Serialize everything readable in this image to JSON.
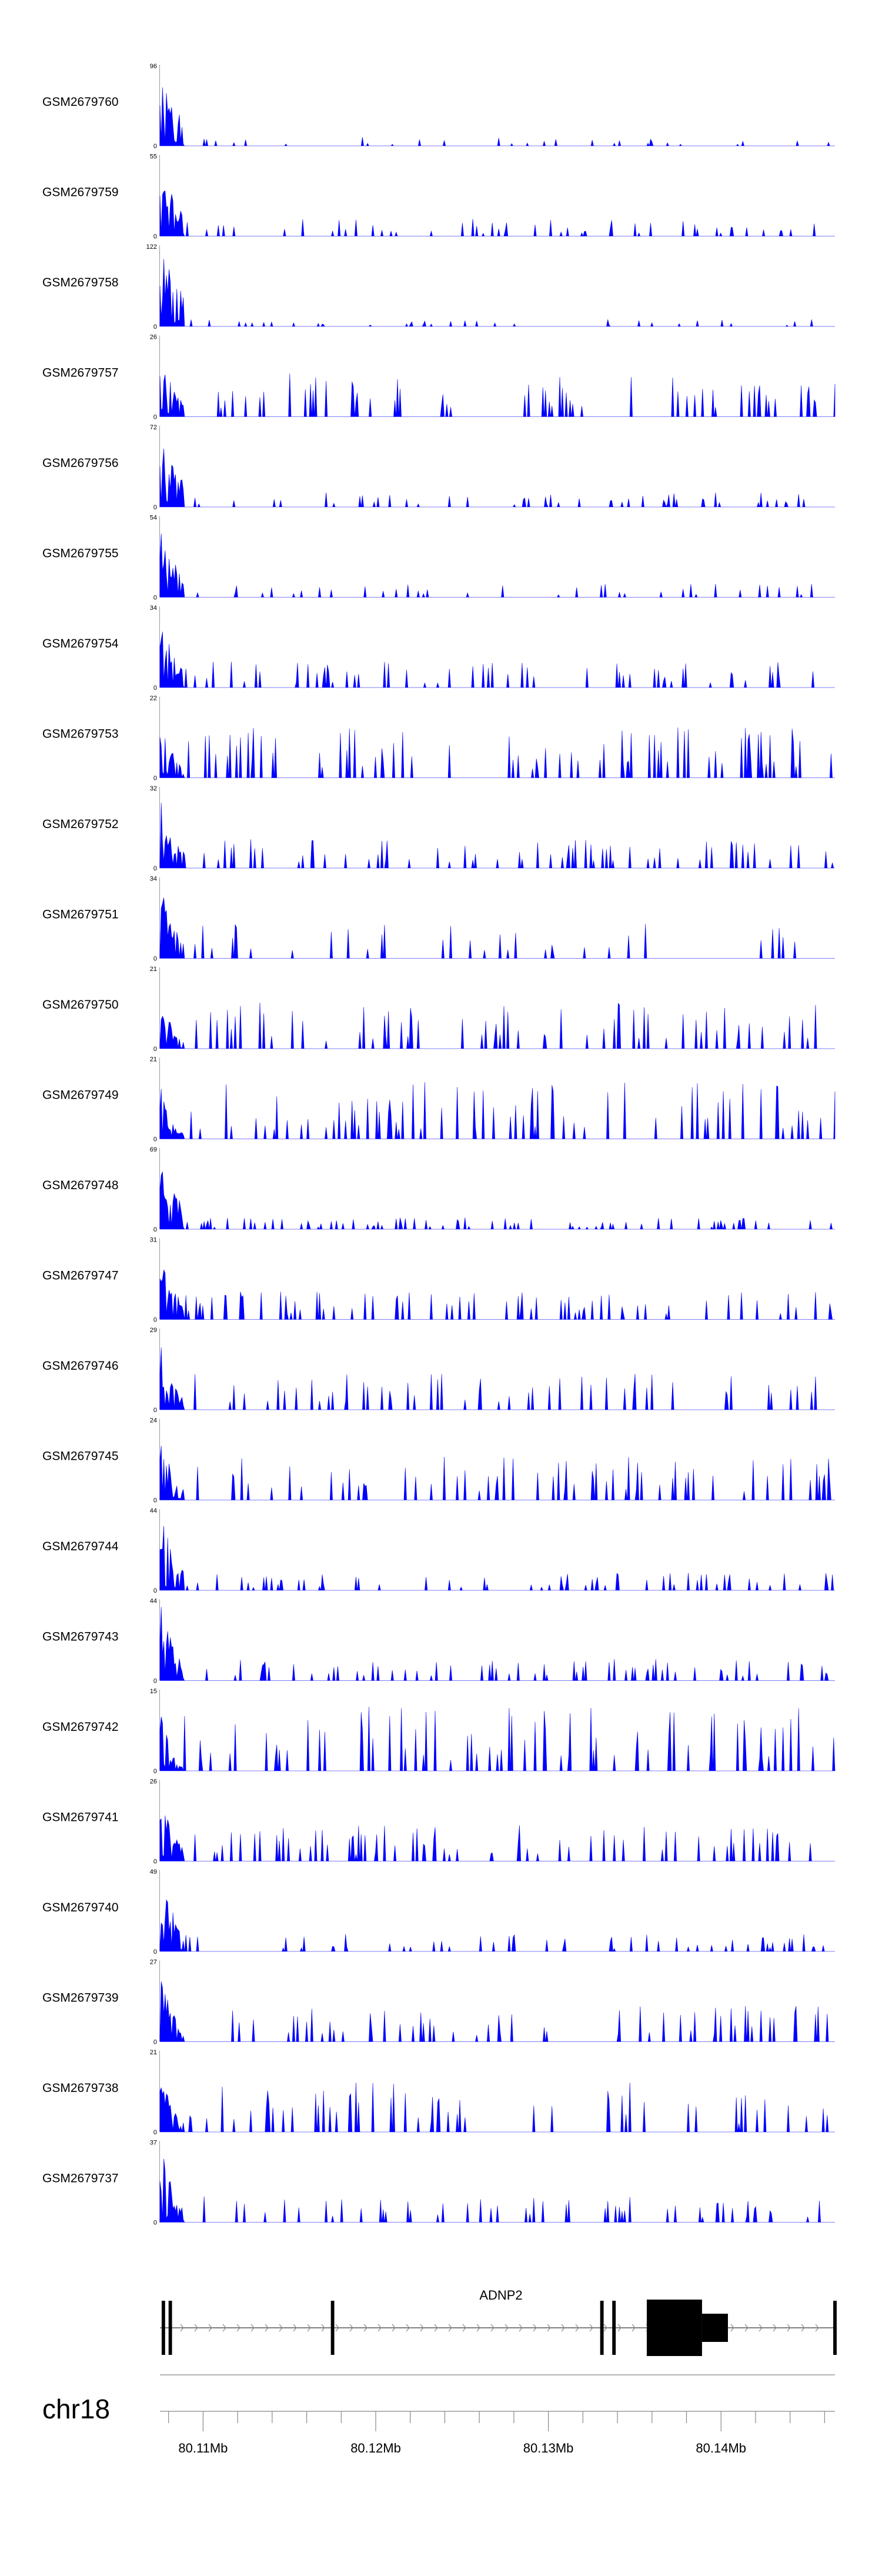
{
  "chart_data": {
    "type": "area",
    "genome": "chr18",
    "xlabel": "",
    "xlim": [
      80.1075,
      80.1466
    ],
    "series": [
      {
        "name": "GSM2679760",
        "ymax": 96,
        "peak": 96,
        "decay": 0.7,
        "density": 0.35,
        "level": 0.06,
        "seed": 11
      },
      {
        "name": "GSM2679759",
        "ymax": 55,
        "peak": 55,
        "decay": 0.9,
        "density": 0.55,
        "level": 0.12,
        "seed": 12
      },
      {
        "name": "GSM2679758",
        "ymax": 122,
        "peak": 122,
        "decay": 0.6,
        "density": 0.4,
        "level": 0.05,
        "seed": 13
      },
      {
        "name": "GSM2679757",
        "ymax": 26,
        "peak": 26,
        "decay": 1.2,
        "density": 0.65,
        "level": 0.3,
        "seed": 14
      },
      {
        "name": "GSM2679756",
        "ymax": 72,
        "peak": 72,
        "decay": 0.8,
        "density": 0.55,
        "level": 0.1,
        "seed": 15
      },
      {
        "name": "GSM2679755",
        "ymax": 54,
        "peak": 54,
        "decay": 0.9,
        "density": 0.45,
        "level": 0.1,
        "seed": 16
      },
      {
        "name": "GSM2679754",
        "ymax": 34,
        "peak": 34,
        "decay": 1.0,
        "density": 0.65,
        "level": 0.18,
        "seed": 17
      },
      {
        "name": "GSM2679753",
        "ymax": 22,
        "peak": 22,
        "decay": 1.5,
        "density": 0.8,
        "level": 0.35,
        "seed": 18
      },
      {
        "name": "GSM2679752",
        "ymax": 32,
        "peak": 32,
        "decay": 1.1,
        "density": 0.7,
        "level": 0.2,
        "seed": 19
      },
      {
        "name": "GSM2679751",
        "ymax": 34,
        "peak": 34,
        "decay": 1.1,
        "density": 0.55,
        "level": 0.25,
        "seed": 20
      },
      {
        "name": "GSM2679750",
        "ymax": 21,
        "peak": 18,
        "decay": 1.5,
        "density": 0.75,
        "level": 0.32,
        "seed": 21
      },
      {
        "name": "GSM2679749",
        "ymax": 21,
        "peak": 16,
        "decay": 1.6,
        "density": 0.8,
        "level": 0.4,
        "seed": 22
      },
      {
        "name": "GSM2679748",
        "ymax": 69,
        "peak": 69,
        "decay": 0.8,
        "density": 0.7,
        "level": 0.08,
        "seed": 23
      },
      {
        "name": "GSM2679747",
        "ymax": 31,
        "peak": 31,
        "decay": 1.1,
        "density": 0.75,
        "level": 0.2,
        "seed": 24
      },
      {
        "name": "GSM2679746",
        "ymax": 29,
        "peak": 26,
        "decay": 1.3,
        "density": 0.65,
        "level": 0.25,
        "seed": 25
      },
      {
        "name": "GSM2679745",
        "ymax": 24,
        "peak": 24,
        "decay": 1.4,
        "density": 0.75,
        "level": 0.3,
        "seed": 26
      },
      {
        "name": "GSM2679744",
        "ymax": 44,
        "peak": 44,
        "decay": 0.9,
        "density": 0.65,
        "level": 0.12,
        "seed": 27
      },
      {
        "name": "GSM2679743",
        "ymax": 44,
        "peak": 44,
        "decay": 1.0,
        "density": 0.8,
        "level": 0.15,
        "seed": 28
      },
      {
        "name": "GSM2679742",
        "ymax": 15,
        "peak": 15,
        "decay": 2.0,
        "density": 0.75,
        "level": 0.45,
        "seed": 29
      },
      {
        "name": "GSM2679741",
        "ymax": 26,
        "peak": 26,
        "decay": 1.3,
        "density": 0.85,
        "level": 0.25,
        "seed": 30
      },
      {
        "name": "GSM2679740",
        "ymax": 49,
        "peak": 49,
        "decay": 0.9,
        "density": 0.7,
        "level": 0.12,
        "seed": 31
      },
      {
        "name": "GSM2679739",
        "ymax": 27,
        "peak": 27,
        "decay": 1.2,
        "density": 0.7,
        "level": 0.25,
        "seed": 32
      },
      {
        "name": "GSM2679738",
        "ymax": 21,
        "peak": 21,
        "decay": 1.5,
        "density": 0.75,
        "level": 0.35,
        "seed": 33
      },
      {
        "name": "GSM2679737",
        "ymax": 37,
        "peak": 37,
        "decay": 1.0,
        "density": 0.65,
        "level": 0.18,
        "seed": 34
      }
    ],
    "gene": {
      "name": "ADNP2",
      "strand": "+",
      "start": 80.1075,
      "end": 80.1466,
      "exons": [
        {
          "start": 80.1076,
          "end": 80.1078,
          "height": "small"
        },
        {
          "start": 80.108,
          "end": 80.1082,
          "height": "small"
        },
        {
          "start": 80.1174,
          "end": 80.1176,
          "height": "small"
        },
        {
          "start": 80.133,
          "end": 80.1332,
          "height": "small"
        },
        {
          "start": 80.1337,
          "end": 80.1339,
          "height": "small"
        },
        {
          "start": 80.1357,
          "end": 80.1389,
          "height": "tall"
        },
        {
          "start": 80.1389,
          "end": 80.1404,
          "height": "mid"
        },
        {
          "start": 80.1465,
          "end": 80.1467,
          "height": "small"
        }
      ]
    },
    "axis": {
      "ticks": [
        80.108,
        80.11,
        80.112,
        80.114,
        80.116,
        80.118,
        80.12,
        80.122,
        80.124,
        80.126,
        80.128,
        80.13,
        80.132,
        80.134,
        80.136,
        80.138,
        80.14,
        80.142,
        80.144,
        80.146
      ],
      "major_ticks": [
        80.11,
        80.12,
        80.13,
        80.14
      ],
      "major_labels": [
        "80.11Mb",
        "80.12Mb",
        "80.13Mb",
        "80.14Mb"
      ]
    },
    "colors": {
      "signal": "#0000ff",
      "gene": "#000000",
      "axis": "#888888"
    }
  }
}
